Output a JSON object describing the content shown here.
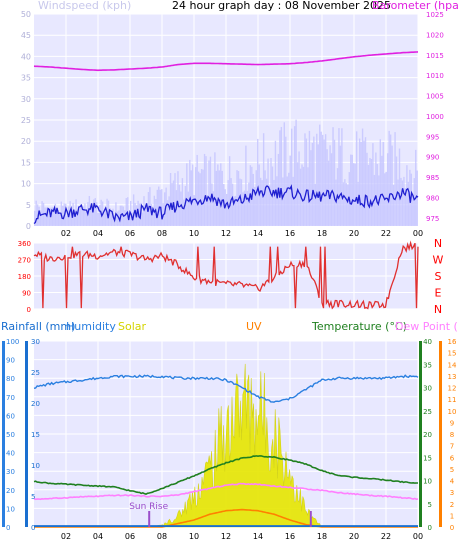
{
  "header": {
    "title": "24 hour graph day : 08 November 2025",
    "windspeed_label": "Windspeed (kph)",
    "barometer_label": "Barometer (hpa)"
  },
  "colors": {
    "wind_gust": "#c6c6ff",
    "wind_avg": "#2020d0",
    "barometer": "#e020e0",
    "direction": "#e03030",
    "humidity": "#2a7fe0",
    "solar": "#e6e600",
    "uv": "#ff8000",
    "temperature": "#208020",
    "dewpoint": "#ff80ff",
    "rain": "#1a6fd0",
    "sun": "#9b4dca",
    "panel_bg": "#e8e8ff",
    "grid": "#ffffff"
  },
  "legend": {
    "rainfall": "Rainfall (mm)",
    "humidity": "Humidity",
    "solar": "Solar",
    "uv": "UV",
    "temperature": "Temperature (°C)",
    "dewpoint": "Dew Point (°C)"
  },
  "annotations": {
    "sunrise": "Sun Rise",
    "sunrise_hour": 7.2,
    "sunset_hour": 17.3
  },
  "chart_data": [
    {
      "type": "line",
      "title": "24 hour graph day : 08 November 2025",
      "x_hours": [
        0,
        1,
        2,
        3,
        4,
        5,
        6,
        7,
        8,
        9,
        10,
        11,
        12,
        13,
        14,
        15,
        16,
        17,
        18,
        19,
        20,
        21,
        22,
        23,
        24
      ],
      "x_ticks": [
        "02",
        "04",
        "06",
        "08",
        "10",
        "12",
        "14",
        "16",
        "18",
        "20",
        "22",
        "00"
      ],
      "left_axis": {
        "label": "Windspeed (kph)",
        "ticks": [
          0,
          5,
          10,
          15,
          20,
          25,
          30,
          35,
          40,
          45,
          50
        ],
        "ylim": [
          0,
          50
        ]
      },
      "right_axis": {
        "label": "Barometer (hpa)",
        "ticks": [
          975,
          980,
          985,
          990,
          995,
          1000,
          1005,
          1010,
          1015,
          1020,
          1025
        ],
        "ylim": [
          973,
          1025
        ]
      },
      "series": [
        {
          "name": "Windspeed (kph)",
          "axis": "left",
          "gust": [
            5,
            4,
            4,
            5,
            5,
            4,
            5,
            6,
            8,
            10,
            12,
            12,
            12,
            13,
            15,
            16,
            18,
            18,
            17,
            17,
            16,
            16,
            16,
            15,
            12
          ],
          "values": [
            2,
            3,
            3,
            4,
            4,
            2,
            2,
            4,
            3,
            5,
            6,
            7,
            5,
            6,
            8,
            8,
            8,
            7,
            7,
            7,
            6,
            6,
            6,
            8,
            6
          ]
        },
        {
          "name": "Barometer (hpa)",
          "axis": "right",
          "values": [
            1012.2,
            1012.0,
            1011.7,
            1011.4,
            1011.2,
            1011.3,
            1011.5,
            1011.7,
            1012.0,
            1012.6,
            1012.9,
            1012.9,
            1012.8,
            1012.7,
            1012.6,
            1012.7,
            1012.8,
            1013.1,
            1013.5,
            1014.0,
            1014.5,
            1014.9,
            1015.2,
            1015.5,
            1015.7
          ]
        }
      ]
    },
    {
      "type": "line",
      "title": "Wind direction",
      "x_hours": [
        0,
        1,
        2,
        3,
        4,
        5,
        6,
        7,
        8,
        9,
        10,
        11,
        12,
        13,
        14,
        15,
        16,
        17,
        18,
        19,
        20,
        21,
        22,
        23,
        24
      ],
      "left_axis": {
        "ticks": [
          0,
          90,
          180,
          270,
          360
        ],
        "ylim": [
          0,
          360
        ]
      },
      "right_labels": [
        "N",
        "W",
        "S",
        "E",
        "N"
      ],
      "series": [
        {
          "name": "Wind direction",
          "values": [
            300,
            275,
            290,
            300,
            290,
            310,
            300,
            270,
            290,
            240,
            170,
            150,
            135,
            130,
            110,
            170,
            240,
            250,
            40,
            30,
            25,
            20,
            25,
            330,
            350
          ]
        }
      ]
    },
    {
      "type": "line",
      "title": "Temperature / Humidity / Solar",
      "x_hours": [
        0,
        1,
        2,
        3,
        4,
        5,
        6,
        7,
        8,
        9,
        10,
        11,
        12,
        13,
        14,
        15,
        16,
        17,
        18,
        19,
        20,
        21,
        22,
        23,
        24
      ],
      "axes": {
        "humidity": {
          "ticks": [
            0,
            10,
            20,
            30,
            40,
            50,
            60,
            70,
            80,
            90,
            100
          ],
          "ylim": [
            0,
            100
          ]
        },
        "rainfall": {
          "ticks": [
            0,
            5,
            10,
            15,
            20,
            25,
            30
          ],
          "ylim": [
            0,
            30
          ]
        },
        "temperature": {
          "ticks": [
            0,
            5,
            10,
            15,
            20,
            25,
            30,
            35,
            40
          ],
          "ylim": [
            0,
            40
          ]
        },
        "uv": {
          "ticks": [
            0,
            1,
            2,
            3,
            4,
            5,
            6,
            7,
            8,
            9,
            10,
            11,
            12,
            13,
            14,
            15,
            16
          ],
          "ylim": [
            0,
            16
          ]
        }
      },
      "series": [
        {
          "name": "Humidity",
          "values": [
            75,
            77,
            78,
            79,
            80,
            81,
            81,
            81,
            81,
            80,
            80,
            80,
            79,
            75,
            70,
            67,
            69,
            74,
            79,
            80,
            80,
            80,
            80,
            81,
            81
          ]
        },
        {
          "name": "Temperature (°C)",
          "values": [
            9.8,
            9.4,
            9.2,
            9.0,
            8.8,
            8.6,
            7.8,
            7.1,
            8.3,
            9.6,
            11.0,
            12.5,
            13.8,
            14.8,
            15.3,
            15.0,
            14.4,
            13.5,
            12.1,
            11.1,
            10.7,
            10.4,
            10.1,
            9.7,
            9.4
          ]
        },
        {
          "name": "Dew Point (°C)",
          "values": [
            6.0,
            6.1,
            6.3,
            6.5,
            6.6,
            6.8,
            6.8,
            6.6,
            6.6,
            6.9,
            7.6,
            8.3,
            9.0,
            9.3,
            9.2,
            8.8,
            8.5,
            8.2,
            7.9,
            7.4,
            7.1,
            6.8,
            6.6,
            6.3,
            6.0
          ]
        },
        {
          "name": "Solar",
          "values": [
            0,
            0,
            0,
            0,
            0,
            0,
            0,
            0,
            3,
            20,
            60,
            110,
            190,
            230,
            220,
            180,
            100,
            30,
            0,
            0,
            0,
            0,
            0,
            0,
            0
          ]
        },
        {
          "name": "UV",
          "values": [
            0,
            0,
            0,
            0,
            0,
            0,
            0,
            0,
            0,
            0.3,
            0.6,
            1.1,
            1.4,
            1.5,
            1.4,
            1.1,
            0.6,
            0.2,
            0,
            0,
            0,
            0,
            0,
            0,
            0
          ]
        },
        {
          "name": "Rainfall (mm)",
          "values": [
            0.3,
            0.3,
            0.3,
            0.3,
            0.3,
            0.3,
            0.3,
            0.3,
            0.3,
            0.3,
            0.3,
            0.3,
            0.3,
            0.3,
            0.3,
            0.3,
            0.3,
            0.3,
            0.3,
            0.3,
            0.3,
            0.3,
            0.3,
            0.3,
            0.3
          ]
        }
      ]
    }
  ]
}
